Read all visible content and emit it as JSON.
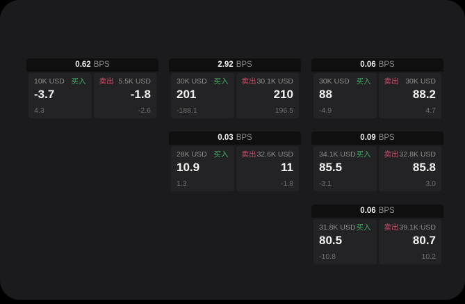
{
  "colors": {
    "buy_green": "#3fae63",
    "sell_red": "#cb4a63",
    "screen_bg": "#1b1b1d",
    "header_bg": "#0f0f10",
    "panel_bg": "#232325"
  },
  "cards": [
    {
      "bps_value": "0.62",
      "bps_unit": "BPS",
      "buy": {
        "amount": "10K USD",
        "side": "买入",
        "price": "-3.7",
        "delta": "4.3"
      },
      "sell": {
        "amount": "5.5K USD",
        "side": "卖出",
        "price": "-1.8",
        "delta": "-2.6"
      }
    },
    {
      "bps_value": "2.92",
      "bps_unit": "BPS",
      "buy": {
        "amount": "30K USD",
        "side": "买入",
        "price": "201",
        "delta": "-188.1"
      },
      "sell": {
        "amount": "30.1K USD",
        "side": "卖出",
        "price": "210",
        "delta": "196.5"
      }
    },
    {
      "bps_value": "0.06",
      "bps_unit": "BPS",
      "buy": {
        "amount": "30K USD",
        "side": "买入",
        "price": "88",
        "delta": "-4.9"
      },
      "sell": {
        "amount": "30K USD",
        "side": "卖出",
        "price": "88.2",
        "delta": "4.7"
      }
    },
    {
      "bps_value": "0.03",
      "bps_unit": "BPS",
      "buy": {
        "amount": "28K USD",
        "side": "买入",
        "price": "10.9",
        "delta": "1.3"
      },
      "sell": {
        "amount": "32.6K USD",
        "side": "卖出",
        "price": "11",
        "delta": "-1.8"
      }
    },
    {
      "bps_value": "0.09",
      "bps_unit": "BPS",
      "buy": {
        "amount": "34.1K USD",
        "side": "买入",
        "price": "85.5",
        "delta": "-3.1"
      },
      "sell": {
        "amount": "32.8K USD",
        "side": "卖出",
        "price": "85.8",
        "delta": "3.0"
      }
    },
    {
      "bps_value": "0.06",
      "bps_unit": "BPS",
      "buy": {
        "amount": "31.8K USD",
        "side": "买入",
        "price": "80.5",
        "delta": "-10.8"
      },
      "sell": {
        "amount": "39.1K USD",
        "side": "卖出",
        "price": "80.7",
        "delta": "10.2"
      }
    }
  ]
}
